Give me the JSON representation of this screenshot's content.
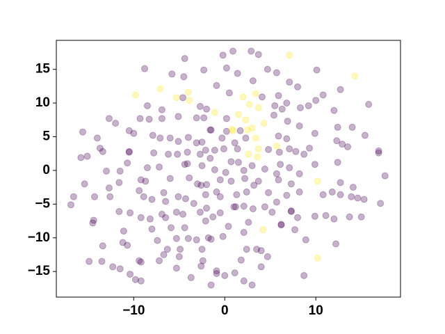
{
  "chart_data": {
    "type": "scatter",
    "alpha": 0.3,
    "xlim": [
      -18.5,
      19.3
    ],
    "ylim": [
      -18.8,
      19.3
    ],
    "xticks": [
      {
        "value": -10,
        "label": "−10"
      },
      0,
      10
    ],
    "yticks": [
      {
        "value": -15,
        "label": "−15"
      },
      {
        "value": -10,
        "label": "−10"
      },
      {
        "value": -5,
        "label": "−5"
      },
      0,
      5,
      10,
      15
    ],
    "series": [
      {
        "color": "#440154",
        "x": [
          -4.4,
          -0.2,
          0.9,
          2.9,
          3.7,
          -8.8,
          -5.8,
          -2.3,
          0.2,
          4.7,
          5.7,
          10.1,
          -4.5,
          1.4,
          -0.9,
          0.5,
          3.1,
          7.1,
          8.0,
          12.7,
          10.8,
          5.9,
          4.1,
          10.0,
          15.8,
          6.8,
          9.2,
          5.5,
          6.3,
          8.3,
          -6.9,
          -8.5,
          -2.7,
          -2.0,
          -4.6,
          12.0,
          -12.7,
          -12.0,
          -9.3,
          -8.3,
          -6.9,
          -5.1,
          -3.1,
          -2.3,
          0.2,
          6.9,
          5.4,
          -15.6,
          -14.0,
          -10.5,
          -10.0,
          -7.9,
          -7.1,
          -1.6,
          -1.5,
          -0.3,
          0.2,
          2.3,
          1.7,
          5.9,
          6.8,
          8.2,
          9.9,
          12.4,
          14.0,
          15.4,
          12.3,
          12.9,
          13.5,
          16.9,
          16.9,
          12.4,
          -15.8,
          -15.1,
          -13.7,
          -13.4,
          -10.5,
          -7.8,
          -6.0,
          -5.1,
          -4.0,
          -3.1,
          -2.5,
          -2.1,
          -2.7,
          -1.1,
          -0.1,
          1.1,
          1.4,
          4.8,
          6.0,
          7.1,
          7.8,
          8.7,
          9.3,
          -6.2,
          -5.2,
          -4.1,
          -4.1,
          -1.6,
          0.7,
          1.5,
          3.0,
          6.1,
          7.1,
          9.9,
          -10.5,
          -13.0,
          -10.7,
          -11.5,
          -8.5,
          -7.2,
          -4.4,
          -2.5,
          -1.1,
          0.1,
          2.1,
          4.4,
          5.7,
          8.2,
          -15.4,
          -16.6,
          -16.9,
          -12.7,
          -11.6,
          -9.2,
          -8.7,
          -6.0,
          -3.9,
          -3.0,
          -2.6,
          -2.0,
          -0.5,
          0.7,
          2.2,
          3.2,
          3.7,
          5.9,
          7.3,
          8.2,
          12.7,
          14.1,
          17.6,
          -14.3,
          -12.6,
          -9.4,
          -8.9,
          -8.0,
          -6.7,
          -6.5,
          -5.1,
          -4.3,
          -2.1,
          -0.9,
          -0.5,
          1.3,
          2.4,
          4.8,
          5.7,
          6.8,
          10.8,
          11.8,
          12.7,
          13.9,
          14.6,
          15.3,
          -14.5,
          -14.4,
          -11.6,
          -10.4,
          -9.2,
          -8.2,
          -6.9,
          -6.5,
          -5.3,
          -4.6,
          -3.4,
          -2.7,
          -2.0,
          -1.3,
          -0.5,
          1.0,
          1.2,
          2.1,
          3.1,
          4.4,
          5.2,
          6.2,
          7.3,
          7.3,
          8.0,
          9.9,
          11.1,
          12.0,
          13.7,
          15.0,
          17.1,
          -11.1,
          -8.0,
          -5.9,
          -4.4,
          -2.1,
          0.4,
          2.1,
          2.6,
          6.2,
          7.7,
          -1.8,
          -1.5,
          -7.4,
          -5.3,
          -4.0,
          -3.1,
          -0.2,
          8.9,
          -13.4,
          -11.2,
          -10.7,
          12.2,
          -6.3,
          -4.9,
          -2.5,
          2.4,
          3.5,
          4.0,
          4.7,
          -6.7,
          -5.0,
          -9.4,
          -9.2,
          -7.2,
          -2.4,
          1.8,
          -14.9,
          -13.5,
          -12.3,
          -11.5,
          -2.6,
          -5.3,
          -0.9,
          -0.9,
          -10.4,
          -9.8,
          -9.2,
          -3.7,
          0.0,
          1.1,
          2.1,
          3.0,
          -1.5,
          8.7,
          4.0
        ],
        "y": [
          16.6,
          17.1,
          17.7,
          17.7,
          17.2,
          15.1,
          14.3,
          14.9,
          15.2,
          15.0,
          14.5,
          14.9,
          13.9,
          14.4,
          12.6,
          11.5,
          13.3,
          13.1,
          12.4,
          12.0,
          11.2,
          11.1,
          10.9,
          10.4,
          9.8,
          10.0,
          9.6,
          9.6,
          9.1,
          9.3,
          9.0,
          9.6,
          9.5,
          9.1,
          10.8,
          8.9,
          7.7,
          7.0,
          7.7,
          7.6,
          7.7,
          8.0,
          7.8,
          7.8,
          7.7,
          7.3,
          8.2,
          5.7,
          4.8,
          5.9,
          5.5,
          5.2,
          4.8,
          6.0,
          6.0,
          4.8,
          5.8,
          4.8,
          5.9,
          5.1,
          4.7,
          6.6,
          5.5,
          6.4,
          6.4,
          5.2,
          4.4,
          3.9,
          3.5,
          2.9,
          2.6,
          1.2,
          1.9,
          2.1,
          3.3,
          2.8,
          2.8,
          2.6,
          4.8,
          4.3,
          4.9,
          4.1,
          4.2,
          3.0,
          2.4,
          3.0,
          3.2,
          4.1,
          3.2,
          3.1,
          2.7,
          3.2,
          2.8,
          2.4,
          3.3,
          2.4,
          2.4,
          2.7,
          1.0,
          1.8,
          1.3,
          1.2,
          0.7,
          0.9,
          0.4,
          0.9,
          2.7,
          -0.1,
          1.1,
          -0.1,
          0.4,
          0.5,
          0.9,
          0.7,
          0.1,
          -0.3,
          0.0,
          0.2,
          -0.5,
          -0.5,
          -2.0,
          -3.9,
          -5.1,
          -2.6,
          -1.8,
          -1.4,
          -1.6,
          -1.2,
          -1.1,
          -2.0,
          -2.2,
          -2.1,
          -1.4,
          -1.6,
          -1.2,
          -2.2,
          -1.6,
          -1.4,
          -2.0,
          -3.2,
          -1.8,
          -2.5,
          -0.8,
          -3.9,
          -3.9,
          -3.0,
          -3.9,
          -4.3,
          -3.3,
          -4.6,
          -3.9,
          -4.2,
          -3.6,
          -3.2,
          -3.9,
          -3.6,
          -3.2,
          -3.3,
          -4.7,
          -3.7,
          -3.6,
          -3.2,
          -3.6,
          -3.9,
          -4.1,
          -4.3,
          -7.8,
          -7.4,
          -6.1,
          -6.3,
          -7.0,
          -7.2,
          -6.5,
          -7.0,
          -6.2,
          -6.5,
          -4.9,
          -6.2,
          -5.6,
          -6.9,
          -6.3,
          -5.4,
          -5.4,
          -5.3,
          -5.7,
          -5.4,
          -6.2,
          -8.0,
          -6.0,
          -6.1,
          -7.0,
          -6.8,
          -6.7,
          -7.2,
          -6.9,
          -6.9,
          -4.9,
          -9.0,
          -8.7,
          -8.5,
          -8.5,
          -7.5,
          -8.3,
          -9.2,
          -7.7,
          -8.1,
          -8.8,
          -10.0,
          -10.2,
          -10.4,
          -10.1,
          -10.1,
          -10.3,
          -9.8,
          -10.3,
          -11.2,
          -10.7,
          -11.1,
          -10.9,
          -11.7,
          -11.7,
          -11.7,
          -11.7,
          -11.7,
          -11.9,
          -12.8,
          -12.5,
          -12.8,
          -13.4,
          -13.6,
          -13.4,
          -13.4,
          -13.3,
          -13.5,
          -13.5,
          -14.3,
          -14.6,
          -14.2,
          -14.5,
          -14.9,
          -15.3,
          -15.4,
          -16.2,
          -16.4,
          -15.9,
          -15.6,
          -15.2,
          -16.4,
          -17.0,
          -17.0,
          -15.6,
          -14.3
        ]
      },
      {
        "color": "#fde725",
        "x": [
          -9.8,
          -7.1,
          -5.3,
          -4.0,
          -3.9,
          -1.1,
          0.8,
          1.5,
          2.0,
          2.3,
          2.7,
          3.0,
          3.4,
          3.7,
          3.4,
          3.7,
          3.6,
          2.6,
          4.3,
          5.7,
          7.1,
          14.3,
          10.2,
          4.2,
          10.2,
          0.9,
          2.5
        ],
        "y": [
          11.2,
          12.1,
          10.8,
          11.6,
          10.4,
          8.6,
          6.1,
          8.3,
          10.9,
          7.5,
          9.8,
          6.3,
          11.4,
          9.3,
          4.8,
          3.2,
          2.0,
          2.4,
          7.0,
          3.6,
          17.1,
          14.0,
          -1.6,
          -8.8,
          -13.0,
          5.9,
          6.0
        ]
      }
    ]
  }
}
